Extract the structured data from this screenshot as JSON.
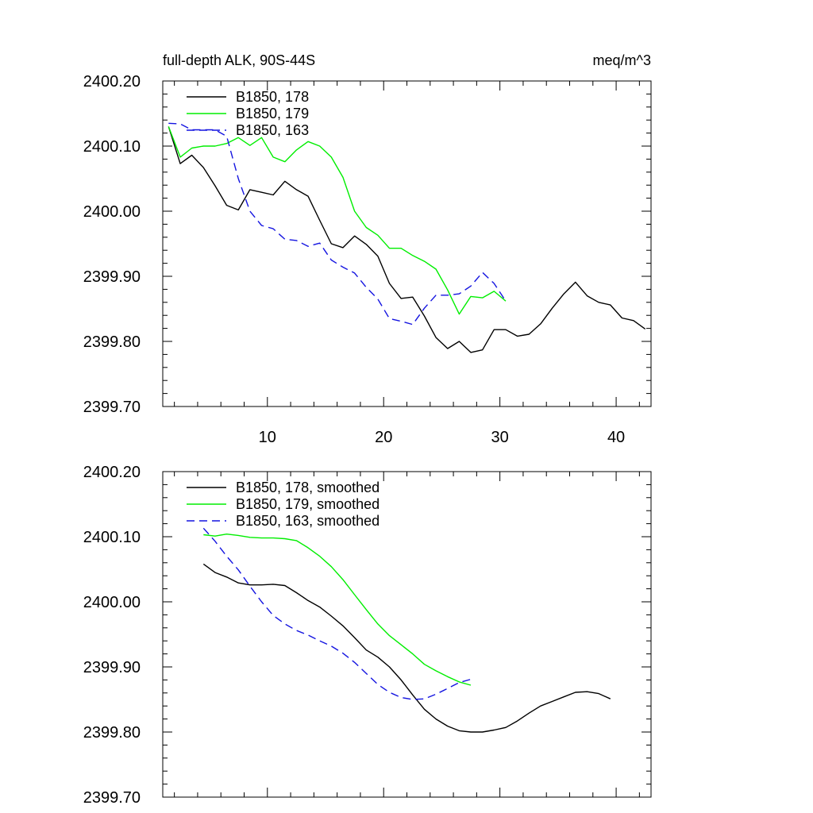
{
  "chart_data": [
    {
      "type": "line",
      "title": "full-depth ALK, 90S-44S",
      "units": "meq/m^3",
      "xlim": [
        1,
        43
      ],
      "ylim": [
        2399.7,
        2400.2
      ],
      "x_ticks": [
        10,
        20,
        30,
        40
      ],
      "x_tick_labels": [
        "10",
        "20",
        "30",
        "40"
      ],
      "y_ticks": [
        2399.7,
        2399.8,
        2399.9,
        2400.0,
        2400.1,
        2400.2
      ],
      "y_tick_labels": [
        "2399.70",
        "2399.80",
        "2399.90",
        "2400.00",
        "2400.10",
        "2400.20"
      ],
      "legend_position": "top-left",
      "series": [
        {
          "name": "B1850, 178",
          "color": "#000000",
          "dash": "solid",
          "x": [
            1.5,
            2.5,
            3.5,
            4.5,
            5.5,
            6.5,
            7.5,
            8.5,
            9.5,
            10.5,
            11.5,
            12.5,
            13.5,
            14.5,
            15.5,
            16.5,
            17.5,
            18.5,
            19.5,
            20.5,
            21.5,
            22.5,
            23.5,
            24.5,
            25.5,
            26.5,
            27.5,
            28.5,
            29.5,
            30.5,
            31.5,
            32.5,
            33.5,
            34.5,
            35.5,
            36.5,
            37.5,
            38.5,
            39.5,
            40.5,
            41.5,
            42.5
          ],
          "values": [
            2400.13,
            2400.073,
            2400.086,
            2400.067,
            2400.039,
            2400.009,
            2400.002,
            2400.033,
            2400.029,
            2400.025,
            2400.046,
            2400.033,
            2400.023,
            2399.986,
            2399.95,
            2399.944,
            2399.962,
            2399.949,
            2399.931,
            2399.889,
            2399.866,
            2399.868,
            2399.839,
            2399.806,
            2399.789,
            2399.8,
            2399.783,
            2399.787,
            2399.818,
            2399.818,
            2399.808,
            2399.811,
            2399.827,
            2399.851,
            2399.873,
            2399.891,
            2399.87,
            2399.86,
            2399.856,
            2399.836,
            2399.832,
            2399.819
          ]
        },
        {
          "name": "B1850, 179",
          "color": "#00ee00",
          "dash": "solid",
          "x": [
            1.5,
            2.5,
            3.5,
            4.5,
            5.5,
            6.5,
            7.5,
            8.5,
            9.5,
            10.5,
            11.5,
            12.5,
            13.5,
            14.5,
            15.5,
            16.5,
            17.5,
            18.5,
            19.5,
            20.5,
            21.5,
            22.5,
            23.5,
            24.5,
            25.5,
            26.5,
            27.5,
            28.5,
            29.5,
            30.5
          ],
          "values": [
            2400.13,
            2400.083,
            2400.097,
            2400.1,
            2400.1,
            2400.104,
            2400.113,
            2400.101,
            2400.113,
            2400.083,
            2400.076,
            2400.094,
            2400.107,
            2400.1,
            2400.083,
            2400.052,
            2400.0,
            2399.975,
            2399.963,
            2399.943,
            2399.943,
            2399.932,
            2399.923,
            2399.911,
            2399.879,
            2399.842,
            2399.869,
            2399.867,
            2399.877,
            2399.862
          ]
        },
        {
          "name": "B1850, 163",
          "color": "#1414e0",
          "dash": "dashed",
          "x": [
            1.5,
            2.5,
            3.5,
            4.5,
            5.5,
            6.5,
            7.5,
            8.5,
            9.5,
            10.5,
            11.5,
            12.5,
            13.5,
            14.5,
            15.5,
            16.5,
            17.5,
            18.5,
            19.5,
            20.5,
            21.5,
            22.5,
            23.5,
            24.5,
            25.5,
            26.5,
            27.5,
            28.5,
            29.5,
            30.5
          ],
          "values": [
            2400.135,
            2400.134,
            2400.125,
            2400.125,
            2400.125,
            2400.115,
            2400.05,
            2400.0,
            2399.978,
            2399.973,
            2399.957,
            2399.955,
            2399.946,
            2399.951,
            2399.925,
            2399.914,
            2399.905,
            2399.883,
            2399.865,
            2399.835,
            2399.831,
            2399.826,
            2399.851,
            2399.871,
            2399.871,
            2399.873,
            2399.885,
            2399.906,
            2399.889,
            2399.862
          ]
        }
      ]
    },
    {
      "type": "line",
      "title": "",
      "xlim": [
        1,
        43
      ],
      "ylim": [
        2399.7,
        2400.2
      ],
      "x_ticks": [
        10,
        20,
        30,
        40
      ],
      "y_ticks": [
        2399.7,
        2399.8,
        2399.9,
        2400.0,
        2400.1,
        2400.2
      ],
      "y_tick_labels": [
        "2399.70",
        "2399.80",
        "2399.90",
        "2400.00",
        "2400.10",
        "2400.20"
      ],
      "legend_position": "top-left",
      "series": [
        {
          "name": "B1850, 178, smoothed",
          "color": "#000000",
          "dash": "solid",
          "x": [
            4.5,
            5.5,
            6.5,
            7.5,
            8.5,
            9.5,
            10.5,
            11.5,
            12.5,
            13.5,
            14.5,
            15.5,
            16.5,
            17.5,
            18.5,
            19.5,
            20.5,
            21.5,
            22.5,
            23.5,
            24.5,
            25.5,
            26.5,
            27.5,
            28.5,
            29.5,
            30.5,
            31.5,
            32.5,
            33.5,
            34.5,
            35.5,
            36.5,
            37.5,
            38.5,
            39.5
          ],
          "values": [
            2400.058,
            2400.045,
            2400.038,
            2400.029,
            2400.026,
            2400.026,
            2400.027,
            2400.025,
            2400.014,
            2400.002,
            2399.992,
            2399.978,
            2399.963,
            2399.945,
            2399.926,
            2399.915,
            2399.9,
            2399.88,
            2399.857,
            2399.835,
            2399.82,
            2399.809,
            2399.802,
            2399.8,
            2399.8,
            2399.803,
            2399.807,
            2399.817,
            2399.829,
            2399.84,
            2399.847,
            2399.854,
            2399.861,
            2399.862,
            2399.859,
            2399.851
          ]
        },
        {
          "name": "B1850, 179, smoothed",
          "color": "#00ee00",
          "dash": "solid",
          "x": [
            4.5,
            5.5,
            6.5,
            7.5,
            8.5,
            9.5,
            10.5,
            11.5,
            12.5,
            13.5,
            14.5,
            15.5,
            16.5,
            17.5,
            18.5,
            19.5,
            20.5,
            21.5,
            22.5,
            23.5,
            24.5,
            25.5,
            26.5,
            27.5
          ],
          "values": [
            2400.103,
            2400.101,
            2400.104,
            2400.102,
            2400.099,
            2400.098,
            2400.098,
            2400.097,
            2400.094,
            2400.083,
            2400.07,
            2400.054,
            2400.034,
            2400.011,
            2399.988,
            2399.966,
            2399.948,
            2399.934,
            2399.92,
            2399.904,
            2399.894,
            2399.885,
            2399.877,
            2399.872
          ]
        },
        {
          "name": "B1850, 163, smoothed",
          "color": "#1414e0",
          "dash": "dashed",
          "x": [
            4.5,
            5.5,
            6.5,
            7.5,
            8.5,
            9.5,
            10.5,
            11.5,
            12.5,
            13.5,
            14.5,
            15.5,
            16.5,
            17.5,
            18.5,
            19.5,
            20.5,
            21.5,
            22.5,
            23.5,
            24.5,
            25.5,
            26.5,
            27.5
          ],
          "values": [
            2400.113,
            2400.093,
            2400.07,
            2400.049,
            2400.024,
            2400.0,
            2399.979,
            2399.966,
            2399.956,
            2399.949,
            2399.94,
            2399.932,
            2399.921,
            2399.907,
            2399.89,
            2399.873,
            2399.861,
            2399.853,
            2399.85,
            2399.851,
            2399.858,
            2399.867,
            2399.876,
            2399.881
          ]
        }
      ]
    }
  ]
}
